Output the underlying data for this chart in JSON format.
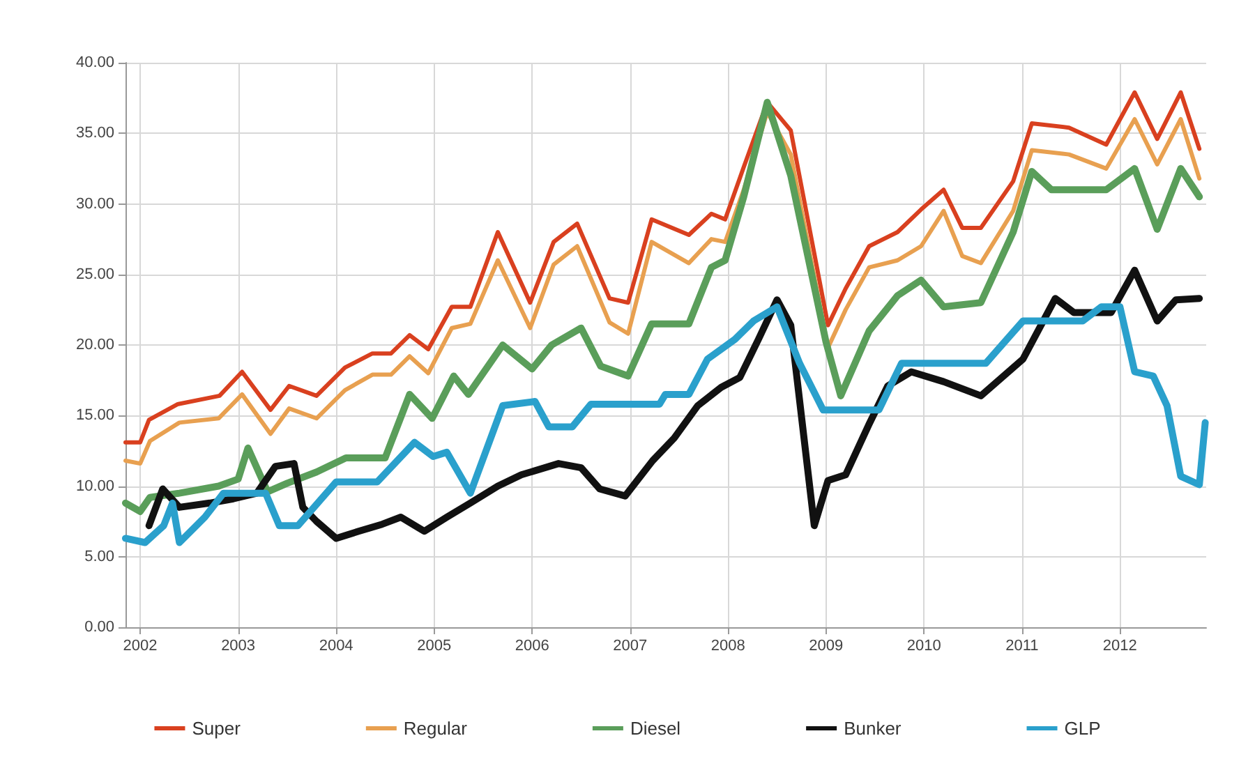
{
  "chart_data": {
    "type": "line",
    "xlim": [
      2001.85,
      2012.88
    ],
    "ylim": [
      0,
      40
    ],
    "xticks": [
      2002,
      2003,
      2004,
      2005,
      2006,
      2007,
      2008,
      2009,
      2010,
      2011,
      2012
    ],
    "yticks": [
      {
        "value": 0,
        "label": "0.00"
      },
      {
        "value": 5,
        "label": "5.00"
      },
      {
        "value": 10,
        "label": "10.00"
      },
      {
        "value": 15,
        "label": "15.00"
      },
      {
        "value": 20,
        "label": "20.00"
      },
      {
        "value": 25,
        "label": "25.00"
      },
      {
        "value": 30,
        "label": "30.00"
      },
      {
        "value": 35,
        "label": "35.00"
      },
      {
        "value": 40,
        "label": "40.00"
      }
    ],
    "grid": true,
    "legend": "bottom",
    "marker": "none",
    "line_style": "solid",
    "series": [
      {
        "name": "Super",
        "color": "#d9401f",
        "x": [
          2001.85,
          2002.0,
          2002.09,
          2002.38,
          2002.81,
          2003.04,
          2003.33,
          2003.52,
          2003.8,
          2004.09,
          2004.37,
          2004.56,
          2004.75,
          2004.94,
          2005.18,
          2005.37,
          2005.65,
          2005.98,
          2006.22,
          2006.46,
          2006.79,
          2006.98,
          2007.22,
          2007.6,
          2007.83,
          2007.97,
          2008.16,
          2008.4,
          2008.64,
          2009.02,
          2009.2,
          2009.44,
          2009.73,
          2009.97,
          2010.2,
          2010.39,
          2010.58,
          2010.91,
          2011.1,
          2011.48,
          2011.86,
          2012.15,
          2012.38,
          2012.62,
          2012.81
        ],
        "values": [
          13.1,
          13.1,
          14.7,
          15.8,
          16.4,
          18.1,
          15.4,
          17.1,
          16.4,
          18.4,
          19.4,
          19.4,
          20.7,
          19.7,
          22.7,
          22.7,
          28.0,
          23.0,
          27.3,
          28.6,
          23.3,
          23.0,
          28.9,
          27.8,
          29.3,
          28.9,
          32.6,
          37.2,
          35.2,
          21.4,
          24.0,
          27.0,
          28.0,
          29.6,
          31.0,
          28.3,
          28.3,
          31.6,
          35.7,
          35.4,
          34.2,
          37.9,
          34.6,
          37.9,
          33.9
        ]
      },
      {
        "name": "Regular",
        "color": "#e8a050",
        "x": [
          2001.85,
          2002.0,
          2002.1,
          2002.4,
          2002.8,
          2003.04,
          2003.33,
          2003.52,
          2003.8,
          2004.09,
          2004.37,
          2004.56,
          2004.75,
          2004.94,
          2005.18,
          2005.37,
          2005.65,
          2005.98,
          2006.22,
          2006.46,
          2006.79,
          2006.98,
          2007.22,
          2007.6,
          2007.83,
          2007.97,
          2008.16,
          2008.4,
          2008.64,
          2009.02,
          2009.2,
          2009.44,
          2009.73,
          2009.97,
          2010.2,
          2010.39,
          2010.58,
          2010.91,
          2011.1,
          2011.48,
          2011.86,
          2012.15,
          2012.38,
          2012.62,
          2012.81
        ],
        "values": [
          11.8,
          11.6,
          13.2,
          14.5,
          14.8,
          16.5,
          13.7,
          15.5,
          14.8,
          16.8,
          17.9,
          17.9,
          19.2,
          18.0,
          21.2,
          21.5,
          26.0,
          21.2,
          25.7,
          27.0,
          21.6,
          20.8,
          27.3,
          25.8,
          27.5,
          27.3,
          31.0,
          36.5,
          33.5,
          19.8,
          22.5,
          25.5,
          26.0,
          27.0,
          29.5,
          26.3,
          25.8,
          29.5,
          33.8,
          33.5,
          32.5,
          36.0,
          32.8,
          36.0,
          31.8
        ]
      },
      {
        "name": "Diesel",
        "color": "#5a9e5a",
        "x": [
          2001.85,
          2002.0,
          2002.1,
          2002.4,
          2002.8,
          2003.0,
          2003.1,
          2003.3,
          2003.5,
          2003.8,
          2004.1,
          2004.5,
          2004.75,
          2004.98,
          2005.2,
          2005.35,
          2005.7,
          2006.0,
          2006.2,
          2006.5,
          2006.7,
          2006.98,
          2007.22,
          2007.6,
          2007.83,
          2007.97,
          2008.16,
          2008.4,
          2008.64,
          2009.0,
          2009.15,
          2009.44,
          2009.73,
          2009.97,
          2010.2,
          2010.58,
          2010.91,
          2011.1,
          2011.3,
          2011.86,
          2012.15,
          2012.38,
          2012.62,
          2012.81
        ],
        "values": [
          8.8,
          8.2,
          9.2,
          9.5,
          10.0,
          10.5,
          12.7,
          9.6,
          10.2,
          11.0,
          12.0,
          12.0,
          16.5,
          14.8,
          17.8,
          16.5,
          20.0,
          18.3,
          20.0,
          21.2,
          18.5,
          17.8,
          21.5,
          21.5,
          25.5,
          26.0,
          30.5,
          37.2,
          32.0,
          20.2,
          16.4,
          21.0,
          23.5,
          24.6,
          22.7,
          23.0,
          28.0,
          32.3,
          31.0,
          31.0,
          32.5,
          28.2,
          32.5,
          30.5
        ]
      },
      {
        "name": "Bunker",
        "color": "#111111",
        "x": [
          2002.09,
          2002.23,
          2002.4,
          2002.71,
          2002.95,
          2003.19,
          2003.38,
          2003.57,
          2003.66,
          2003.8,
          2004.0,
          2004.23,
          2004.47,
          2004.66,
          2004.9,
          2005.13,
          2005.37,
          2005.65,
          2005.89,
          2006.27,
          2006.5,
          2006.69,
          2006.95,
          2007.23,
          2007.45,
          2007.69,
          2007.93,
          2008.12,
          2008.31,
          2008.5,
          2008.64,
          2008.88,
          2009.02,
          2009.2,
          2009.44,
          2009.63,
          2009.87,
          2010.2,
          2010.58,
          2011.01,
          2011.34,
          2011.53,
          2011.91,
          2012.15,
          2012.38,
          2012.57,
          2012.81
        ],
        "values": [
          7.2,
          9.8,
          8.5,
          8.8,
          9.1,
          9.5,
          11.4,
          11.6,
          8.5,
          7.5,
          6.3,
          6.8,
          7.3,
          7.8,
          6.8,
          7.8,
          8.8,
          10.0,
          10.8,
          11.6,
          11.3,
          9.8,
          9.3,
          11.8,
          13.4,
          15.7,
          17.0,
          17.7,
          20.4,
          23.2,
          21.4,
          7.2,
          10.4,
          10.8,
          14.4,
          17.1,
          18.1,
          17.4,
          16.4,
          19.0,
          23.3,
          22.3,
          22.3,
          25.3,
          21.7,
          23.2,
          23.3
        ]
      },
      {
        "name": "GLP",
        "color": "#2aa0cc",
        "x": [
          2001.85,
          2002.05,
          2002.24,
          2002.33,
          2002.4,
          2002.66,
          2002.85,
          2003.28,
          2003.42,
          2003.61,
          2004.0,
          2004.42,
          2004.8,
          2004.99,
          2005.13,
          2005.37,
          2005.7,
          2006.03,
          2006.17,
          2006.41,
          2006.6,
          2007.3,
          2007.36,
          2007.6,
          2007.79,
          2008.07,
          2008.26,
          2008.5,
          2008.73,
          2008.97,
          2009.54,
          2009.77,
          2010.63,
          2011.01,
          2011.62,
          2011.81,
          2012.0,
          2012.15,
          2012.34,
          2012.48,
          2012.62,
          2012.81,
          2012.87
        ],
        "values": [
          6.3,
          6.0,
          7.2,
          8.8,
          6.0,
          7.8,
          9.5,
          9.5,
          7.2,
          7.2,
          10.3,
          10.3,
          13.1,
          12.1,
          12.4,
          9.5,
          15.7,
          16.0,
          14.2,
          14.2,
          15.8,
          15.8,
          16.5,
          16.5,
          19.0,
          20.4,
          21.7,
          22.7,
          18.7,
          15.4,
          15.4,
          18.7,
          18.7,
          21.7,
          21.7,
          22.7,
          22.7,
          18.1,
          17.8,
          15.7,
          10.7,
          10.1,
          14.5
        ]
      }
    ]
  }
}
